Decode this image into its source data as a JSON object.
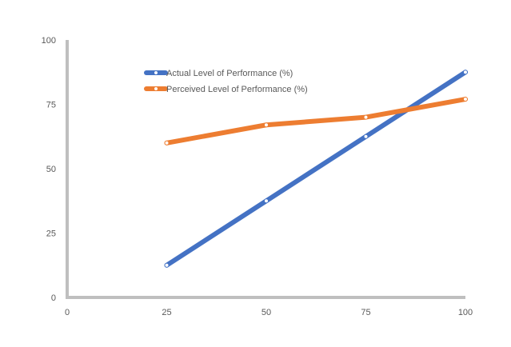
{
  "chart_data": {
    "type": "line",
    "title": "",
    "xlabel": "",
    "ylabel": "",
    "xlim": [
      0,
      100
    ],
    "ylim": [
      0,
      100
    ],
    "x_ticks": [
      "0",
      "25",
      "50",
      "75",
      "100"
    ],
    "y_ticks": [
      "0",
      "25",
      "50",
      "75",
      "100"
    ],
    "grid": false,
    "legend_position": "top-left-inside",
    "x": [
      25,
      50,
      75,
      100
    ],
    "series": [
      {
        "name": "Actual Level of Performance (%)",
        "color": "#4472C4",
        "values": [
          12.5,
          37.5,
          62.5,
          87.5
        ]
      },
      {
        "name": "Perceived Level of Performance (%)",
        "color": "#ED7D31",
        "values": [
          60,
          67,
          70,
          77
        ]
      }
    ]
  }
}
